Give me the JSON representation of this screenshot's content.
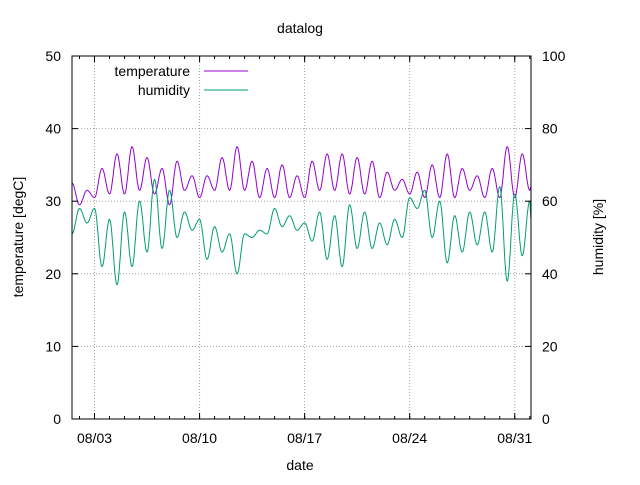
{
  "chart_data": {
    "type": "line",
    "title": "datalog",
    "xlabel": "date",
    "ylabel": "temperature [degC]",
    "y2label": "humidity [%]",
    "x_ticks": [
      "08/03",
      "08/10",
      "08/17",
      "08/24",
      "08/31"
    ],
    "y_ticks": [
      0,
      10,
      20,
      30,
      40,
      50
    ],
    "y2_ticks": [
      0,
      20,
      40,
      60,
      80,
      100
    ],
    "xlim": [
      "2023-08-01 12:00",
      "2023-09-01 02:00"
    ],
    "ylim": [
      0,
      50
    ],
    "y2lim": [
      0,
      100
    ],
    "grid": true,
    "legend_position": "top-left",
    "series": [
      {
        "name": "temperature",
        "axis": "y",
        "color": "#9400d3",
        "points": [
          [
            "2023-08-01 12:00",
            32.5
          ],
          [
            "2023-08-02 00:00",
            29.5
          ],
          [
            "2023-08-02 12:00",
            31.5
          ],
          [
            "2023-08-03 00:00",
            30.5
          ],
          [
            "2023-08-03 12:00",
            34.5
          ],
          [
            "2023-08-04 00:00",
            31.0
          ],
          [
            "2023-08-04 12:00",
            36.5
          ],
          [
            "2023-08-05 00:00",
            31.0
          ],
          [
            "2023-08-05 12:00",
            37.5
          ],
          [
            "2023-08-06 00:00",
            31.5
          ],
          [
            "2023-08-06 12:00",
            36.0
          ],
          [
            "2023-08-07 00:00",
            31.0
          ],
          [
            "2023-08-07 12:00",
            34.5
          ],
          [
            "2023-08-08 00:00",
            29.5
          ],
          [
            "2023-08-08 12:00",
            35.5
          ],
          [
            "2023-08-09 00:00",
            31.5
          ],
          [
            "2023-08-09 12:00",
            33.5
          ],
          [
            "2023-08-10 00:00",
            30.5
          ],
          [
            "2023-08-10 12:00",
            33.5
          ],
          [
            "2023-08-11 00:00",
            31.5
          ],
          [
            "2023-08-11 12:00",
            36.0
          ],
          [
            "2023-08-12 00:00",
            31.5
          ],
          [
            "2023-08-12 12:00",
            37.5
          ],
          [
            "2023-08-13 00:00",
            31.5
          ],
          [
            "2023-08-13 12:00",
            35.5
          ],
          [
            "2023-08-14 00:00",
            30.5
          ],
          [
            "2023-08-14 12:00",
            34.5
          ],
          [
            "2023-08-15 00:00",
            30.5
          ],
          [
            "2023-08-15 12:00",
            35.0
          ],
          [
            "2023-08-16 00:00",
            30.5
          ],
          [
            "2023-08-16 12:00",
            33.5
          ],
          [
            "2023-08-17 00:00",
            30.5
          ],
          [
            "2023-08-17 12:00",
            35.5
          ],
          [
            "2023-08-18 00:00",
            31.5
          ],
          [
            "2023-08-18 12:00",
            36.5
          ],
          [
            "2023-08-19 00:00",
            31.5
          ],
          [
            "2023-08-19 12:00",
            36.5
          ],
          [
            "2023-08-20 00:00",
            31.0
          ],
          [
            "2023-08-20 12:00",
            36.0
          ],
          [
            "2023-08-21 00:00",
            31.0
          ],
          [
            "2023-08-21 12:00",
            35.5
          ],
          [
            "2023-08-22 00:00",
            30.5
          ],
          [
            "2023-08-22 12:00",
            34.0
          ],
          [
            "2023-08-23 00:00",
            31.5
          ],
          [
            "2023-08-23 12:00",
            33.0
          ],
          [
            "2023-08-24 00:00",
            31.0
          ],
          [
            "2023-08-24 12:00",
            34.0
          ],
          [
            "2023-08-25 00:00",
            30.5
          ],
          [
            "2023-08-25 12:00",
            35.0
          ],
          [
            "2023-08-26 00:00",
            30.5
          ],
          [
            "2023-08-26 12:00",
            36.5
          ],
          [
            "2023-08-27 00:00",
            30.5
          ],
          [
            "2023-08-27 12:00",
            34.5
          ],
          [
            "2023-08-28 00:00",
            31.5
          ],
          [
            "2023-08-28 12:00",
            33.5
          ],
          [
            "2023-08-29 00:00",
            30.5
          ],
          [
            "2023-08-29 12:00",
            34.5
          ],
          [
            "2023-08-30 00:00",
            30.5
          ],
          [
            "2023-08-30 12:00",
            37.5
          ],
          [
            "2023-08-31 00:00",
            30.5
          ],
          [
            "2023-08-31 12:00",
            36.5
          ],
          [
            "2023-09-01 00:00",
            31.5
          ],
          [
            "2023-09-01 02:00",
            32.0
          ]
        ]
      },
      {
        "name": "humidity",
        "axis": "y2",
        "color": "#009e73",
        "points": [
          [
            "2023-08-01 12:00",
            51
          ],
          [
            "2023-08-02 00:00",
            58
          ],
          [
            "2023-08-02 12:00",
            54
          ],
          [
            "2023-08-03 00:00",
            58
          ],
          [
            "2023-08-03 12:00",
            42
          ],
          [
            "2023-08-04 00:00",
            55
          ],
          [
            "2023-08-04 12:00",
            37
          ],
          [
            "2023-08-05 00:00",
            57
          ],
          [
            "2023-08-05 12:00",
            42
          ],
          [
            "2023-08-06 00:00",
            60
          ],
          [
            "2023-08-06 12:00",
            46
          ],
          [
            "2023-08-07 00:00",
            66
          ],
          [
            "2023-08-07 12:00",
            47
          ],
          [
            "2023-08-08 00:00",
            63
          ],
          [
            "2023-08-08 12:00",
            50
          ],
          [
            "2023-08-09 00:00",
            57
          ],
          [
            "2023-08-09 12:00",
            52
          ],
          [
            "2023-08-10 00:00",
            55
          ],
          [
            "2023-08-10 12:00",
            44
          ],
          [
            "2023-08-11 00:00",
            53
          ],
          [
            "2023-08-11 12:00",
            46
          ],
          [
            "2023-08-12 00:00",
            51
          ],
          [
            "2023-08-12 12:00",
            40
          ],
          [
            "2023-08-13 00:00",
            51
          ],
          [
            "2023-08-13 12:00",
            50
          ],
          [
            "2023-08-14 00:00",
            52
          ],
          [
            "2023-08-14 12:00",
            51
          ],
          [
            "2023-08-15 00:00",
            58
          ],
          [
            "2023-08-15 12:00",
            53
          ],
          [
            "2023-08-16 00:00",
            56
          ],
          [
            "2023-08-16 12:00",
            52
          ],
          [
            "2023-08-17 00:00",
            54
          ],
          [
            "2023-08-17 12:00",
            49
          ],
          [
            "2023-08-18 00:00",
            57
          ],
          [
            "2023-08-18 12:00",
            44
          ],
          [
            "2023-08-19 00:00",
            56
          ],
          [
            "2023-08-19 12:00",
            42
          ],
          [
            "2023-08-20 00:00",
            59
          ],
          [
            "2023-08-20 12:00",
            47
          ],
          [
            "2023-08-21 00:00",
            57
          ],
          [
            "2023-08-21 12:00",
            47
          ],
          [
            "2023-08-22 00:00",
            54
          ],
          [
            "2023-08-22 12:00",
            48
          ],
          [
            "2023-08-23 00:00",
            55
          ],
          [
            "2023-08-23 12:00",
            50
          ],
          [
            "2023-08-24 00:00",
            61
          ],
          [
            "2023-08-24 12:00",
            58
          ],
          [
            "2023-08-25 00:00",
            63
          ],
          [
            "2023-08-25 12:00",
            50
          ],
          [
            "2023-08-26 00:00",
            60
          ],
          [
            "2023-08-26 12:00",
            43
          ],
          [
            "2023-08-27 00:00",
            56
          ],
          [
            "2023-08-27 12:00",
            46
          ],
          [
            "2023-08-28 00:00",
            57
          ],
          [
            "2023-08-28 12:00",
            48
          ],
          [
            "2023-08-29 00:00",
            57
          ],
          [
            "2023-08-29 12:00",
            46
          ],
          [
            "2023-08-30 00:00",
            64
          ],
          [
            "2023-08-30 12:00",
            38
          ],
          [
            "2023-08-31 00:00",
            62
          ],
          [
            "2023-08-31 12:00",
            45
          ],
          [
            "2023-09-01 00:00",
            60
          ],
          [
            "2023-09-01 02:00",
            55
          ]
        ]
      }
    ]
  }
}
